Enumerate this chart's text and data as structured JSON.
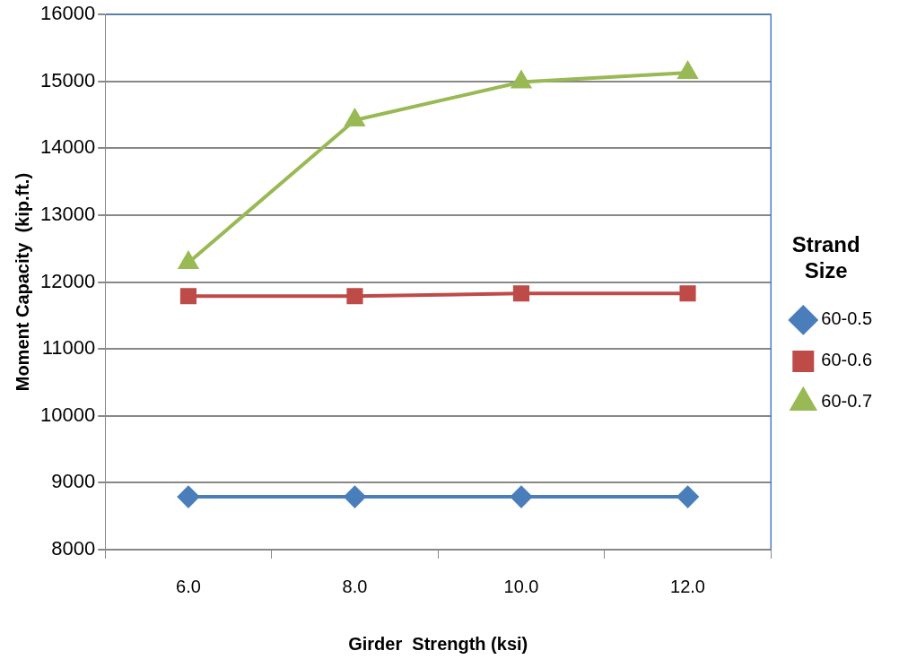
{
  "chart_data": {
    "type": "line",
    "xlabel": "Girder  Strength (ksi)",
    "ylabel": "Moment Capacity  (kip.ft.)",
    "legend_title": "Strand Size",
    "legend": "right",
    "grid": "y",
    "line_style": "solid",
    "categories": [
      "6.0",
      "8.0",
      "10.0",
      "12.0"
    ],
    "ylim": [
      8000,
      16000
    ],
    "yticks": [
      8000,
      9000,
      10000,
      11000,
      12000,
      13000,
      14000,
      15000,
      16000
    ],
    "series": [
      {
        "name": "60-0.5",
        "color": "#4a7ebb",
        "marker": "diamond",
        "values": [
          8790,
          8790,
          8790,
          8790
        ]
      },
      {
        "name": "60-0.6",
        "color": "#be4b48",
        "marker": "square",
        "values": [
          11790,
          11790,
          11830,
          11830
        ]
      },
      {
        "name": "60-0.7",
        "color": "#98b954",
        "marker": "triangle",
        "values": [
          12290,
          14420,
          14990,
          15130
        ]
      }
    ]
  }
}
